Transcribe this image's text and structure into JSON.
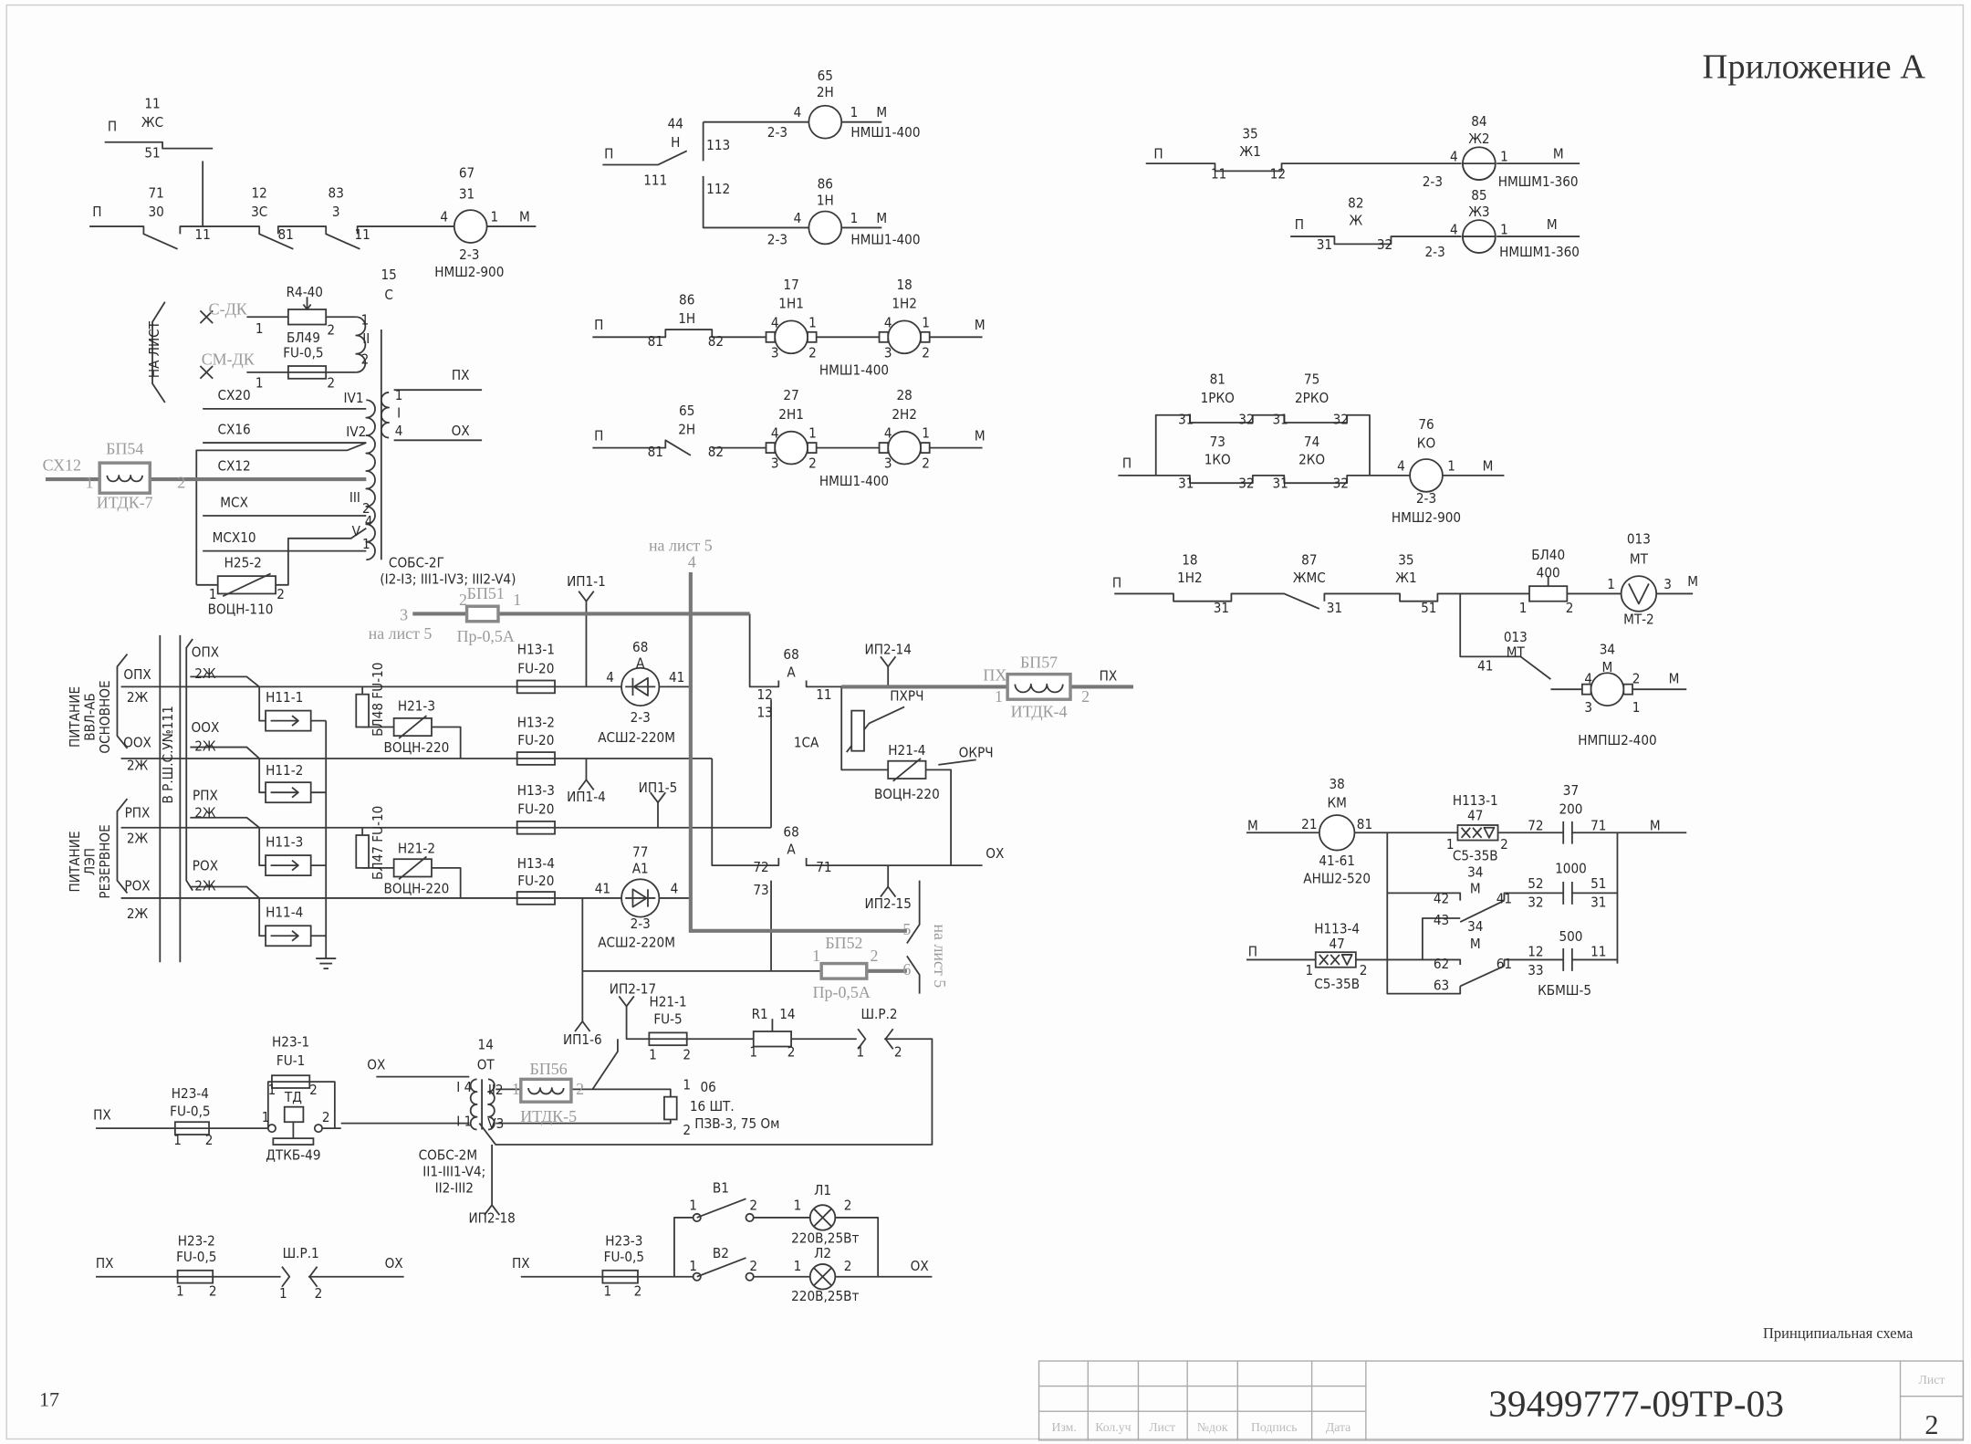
{
  "header": {
    "appendix": "Приложение А",
    "page_number": "17",
    "drawing_title": "Принципиальная схема",
    "doc_code": "39499777-09ТР-03",
    "sheet_label": "Лист",
    "sheet_number": "2",
    "columns": [
      "Изм.",
      "Кол.уч",
      "Лист",
      "№док",
      "Подпись",
      "Дата"
    ]
  },
  "labels": {
    "signal_ts": [
      "11",
      "ЖС",
      "П",
      "51",
      "П",
      "71",
      "30",
      "12",
      "3С",
      "83",
      "3",
      "11",
      "81",
      "11",
      "67",
      "31",
      "4",
      "1",
      "М",
      "2-3",
      "НМШ2-900"
    ],
    "transformer_c": [
      "15",
      "С",
      "С-ДК",
      "R4-40",
      "1",
      "2",
      "БЛ49",
      "FU-0,5",
      "1",
      "2",
      "СМ-ДК",
      "1",
      "II",
      "2",
      "НА ЛИСТ",
      "ПХ",
      "1",
      "I",
      "4",
      "ОХ",
      "СХ20",
      "IV1",
      "СХ16",
      "IV2",
      "СХ12",
      "БП54",
      "ИТДК-7",
      "1",
      "2",
      "СХ12",
      "III",
      "2",
      "МСХ",
      "4",
      "V",
      "1",
      "МСХ10",
      "Н25-2",
      "1",
      "2",
      "ВОЦН-110",
      "СОБС-2Г",
      "(I2-I3; III1-IV3; III2-V4)"
    ],
    "power_supply": [
      "ПИТАНИЕ",
      "ВВЛ-АБ",
      "ОСНОВНОЕ",
      "ПИТАНИЕ",
      "ЛЭП",
      "РЕЗЕРВНОЕ",
      "В Р.Ш.С.У№111",
      "ОПХ",
      "2Ж",
      "ООХ",
      "2Ж",
      "РПХ",
      "2Ж",
      "РОХ",
      "2Ж",
      "ОПХ",
      "2Ж",
      "ООХ",
      "2Ж",
      "РПХ",
      "2Ж",
      "РОХ",
      "2Ж",
      "Н11-1",
      "Н11-2",
      "Н11-3",
      "Н11-4",
      "БЛ48 FU-10",
      "БЛ47 FU-10",
      "Н21-3",
      "ВОЦН-220",
      "Н21-2",
      "ВОЦН-220",
      "Н13-1",
      "FU-20",
      "Н13-2",
      "FU-20",
      "Н13-3",
      "FU-20",
      "Н13-4",
      "FU-20",
      "68",
      "А",
      "4",
      "41",
      "2-3",
      "АСШ2-220М",
      "77",
      "А1",
      "41",
      "4",
      "2-3",
      "АСШ2-220М",
      "ИП1-1",
      "ИП1-4",
      "ИП1-5",
      "ИП1-6",
      "на лист 5",
      "4",
      "3",
      "на лист 5",
      "2",
      "БП51",
      "1",
      "Пр-0,5А",
      "68",
      "А",
      "12",
      "11",
      "13",
      "ИП2-14",
      "ПХ",
      "БП57",
      "ИТДК-4",
      "1",
      "2",
      "ПХ",
      "1СА",
      "ПХРЧ",
      "Н21-4",
      "ВОЦН-220",
      "ОКРЧ",
      "68",
      "А",
      "72",
      "71",
      "73",
      "ОХ",
      "ИП2-15",
      "5",
      "6",
      "на лист 5",
      "1",
      "БП52",
      "2",
      "Пр-0,5А"
    ],
    "lower_left": [
      "ИП2-17",
      "Н21-1",
      "FU-5",
      "1",
      "2",
      "R1",
      "14",
      "1",
      "2",
      "Ш.Р.2",
      "1",
      "2",
      "Н23-1",
      "FU-1",
      "1",
      "2",
      "Н23-4",
      "FU-0,5",
      "1",
      "2",
      "ПХ",
      "ТД",
      "1",
      "2",
      "ДТКБ-49",
      "ОХ",
      "14",
      "ОТ",
      "I 4",
      "I 1",
      "II2",
      "V3",
      "БП56",
      "ИТДК-5",
      "1",
      "2",
      "1",
      "06",
      "16 ШТ.",
      "ПЗВ-3, 75 Ом",
      "2",
      "СОБС-2М",
      "II1-III1-V4;",
      "II2-III2",
      "ИП2-18"
    ],
    "lamps": [
      "В1",
      "1",
      "2",
      "Л1",
      "1",
      "2",
      "220В,25Вт",
      "В2",
      "1",
      "2",
      "Л2",
      "1",
      "2",
      "220В,25Вт",
      "Н23-3",
      "FU-0,5",
      "1",
      "2",
      "ПХ",
      "ОХ",
      "Н23-2",
      "FU-0,5",
      "1",
      "2",
      "ПХ",
      "Ш.Р.1",
      "1",
      "2",
      "ОХ"
    ],
    "motors_middle": [
      "44",
      "Н",
      "П",
      "113",
      "111",
      "112",
      "65",
      "2Н",
      "4",
      "1",
      "М",
      "2-3",
      "НМШ1-400",
      "86",
      "1Н",
      "4",
      "1",
      "М",
      "2-3",
      "НМШ1-400",
      "86",
      "1Н",
      "П",
      "81",
      "82",
      "17",
      "1Н1",
      "4",
      "1",
      "3",
      "2",
      "18",
      "1Н2",
      "4",
      "1",
      "3",
      "2",
      "М",
      "НМШ1-400",
      "65",
      "2Н",
      "П",
      "81",
      "82",
      "27",
      "2Н1",
      "4",
      "1",
      "3",
      "2",
      "28",
      "2Н2",
      "4",
      "1",
      "3",
      "2",
      "М",
      "НМШ1-400"
    ],
    "motors_right": [
      "35",
      "Ж1",
      "П",
      "11",
      "12",
      "84",
      "Ж2",
      "4",
      "1",
      "М",
      "2-3",
      "НМШМ1-360",
      "82",
      "Ж",
      "П",
      "31",
      "32",
      "85",
      "Ж3",
      "4",
      "1",
      "М",
      "2-3",
      "НМШМ1-360",
      "81",
      "1РКО",
      "75",
      "2РКО",
      "31",
      "32",
      "31",
      "32",
      "73",
      "1КО",
      "74",
      "2КО",
      "П",
      "31",
      "32",
      "31",
      "32",
      "76",
      "КО",
      "4",
      "1",
      "М",
      "2-3",
      "НМШ2-900",
      "18",
      "1Н2",
      "П",
      "31",
      "87",
      "ЖМС",
      "31",
      "35",
      "Ж1",
      "51",
      "БЛ40",
      "400",
      "1",
      "2",
      "013",
      "МТ",
      "1",
      "3",
      "М",
      "МТ-2",
      "013",
      "МТ",
      "41",
      "34",
      "М",
      "4",
      "2",
      "3",
      "1",
      "М",
      "НМПШ2-400"
    ],
    "km_circuit": [
      "38",
      "КМ",
      "М",
      "21",
      "81",
      "41-61",
      "АНШ2-520",
      "Н113-1",
      "47",
      "1",
      "2",
      "С5-35В",
      "37",
      "200",
      "72",
      "71",
      "М",
      "34",
      "М",
      "42",
      "43",
      "41",
      "52",
      "32",
      "1000",
      "51",
      "31",
      "Н113-4",
      "47",
      "П",
      "1",
      "2",
      "С5-35В",
      "34",
      "М",
      "62",
      "63",
      "61",
      "12",
      "33",
      "500",
      "11",
      "КБМШ-5"
    ]
  },
  "colors": {
    "ink": "#3a3a3a",
    "faded_ink": "#9a9a9a",
    "paper": "#fdfdfd"
  }
}
